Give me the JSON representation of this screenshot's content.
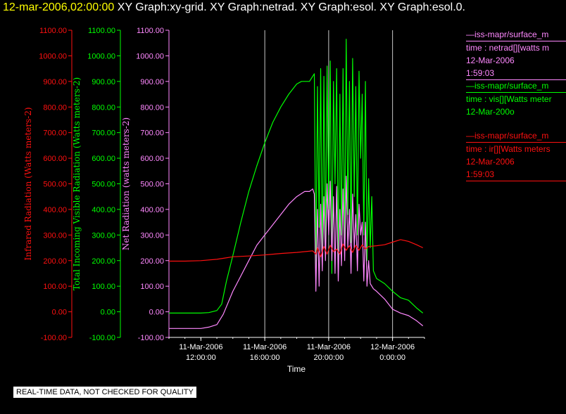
{
  "header": {
    "timestamp": "12-mar-2006,02:00:00",
    "titles": "XY Graph:xy-grid.  XY Graph:netrad.  XY Graph:esol.  XY Graph:esol.0."
  },
  "colors": {
    "background": "#000000",
    "ir": "#ff1010",
    "vis": "#00ff00",
    "net": "#ff88ff",
    "grid": "#c8c8c8",
    "axis": "#ffffff"
  },
  "legends": {
    "net": {
      "line1": "—iss-mapr/surface_m",
      "line2": "time : netrad[][watts m",
      "line3": "12-Mar-2006",
      "line4": "1:59:03"
    },
    "vis": {
      "line1": "—iss-mapr/surface_m",
      "line2": "time : vis[][Watts meter",
      "line3": "12-Mar-200o"
    },
    "ir": {
      "line1": "—iss-mapr/surface_m",
      "line2": "time : ir[][Watts meters",
      "line3": "12-Mar-2006",
      "line4": "1:59:03"
    }
  },
  "disclaimer": "REAL-TIME DATA, NOT CHECKED FOR QUALITY",
  "chart_data": {
    "type": "line",
    "xlabel": "Time",
    "x_ticks": [
      {
        "date": "11-Mar-2006",
        "time": "12:00:00",
        "hour": 12
      },
      {
        "date": "11-Mar-2006",
        "time": "16:00:00",
        "hour": 16
      },
      {
        "date": "11-Mar-2006",
        "time": "20:00:00",
        "hour": 20
      },
      {
        "date": "12-Mar-2006",
        "time": "0:00:00",
        "hour": 24
      }
    ],
    "x_range_hours": [
      10.0,
      26.0
    ],
    "ylim": [
      -100,
      1100
    ],
    "y_tick_labels": [
      "-100.00",
      "0.00",
      "100.00",
      "200.00",
      "300.00",
      "400.00",
      "500.00",
      "600.00",
      "700.00",
      "800.00",
      "900.00",
      "1000.00",
      "1100.00"
    ],
    "axes": [
      {
        "id": "ir",
        "label": "Infrared Radiation (Watts meters-2)",
        "color": "#ff1010"
      },
      {
        "id": "vis",
        "label": "Total Incoming Visible Radiation (Watts meters-2)",
        "color": "#00ff00"
      },
      {
        "id": "net",
        "label": "Net Radiation (watts meters-2)",
        "color": "#ff88ff"
      }
    ],
    "vertical_gridlines_hours": [
      16,
      20,
      24
    ],
    "series": [
      {
        "id": "vis",
        "color": "#00ff00",
        "points": [
          [
            10.0,
            -5
          ],
          [
            12.0,
            -5
          ],
          [
            12.5,
            -3
          ],
          [
            13.0,
            5
          ],
          [
            13.3,
            30
          ],
          [
            13.6,
            120
          ],
          [
            14.0,
            220
          ],
          [
            14.5,
            350
          ],
          [
            15.0,
            470
          ],
          [
            15.5,
            570
          ],
          [
            16.0,
            660
          ],
          [
            16.5,
            740
          ],
          [
            17.0,
            800
          ],
          [
            17.5,
            850
          ],
          [
            18.0,
            890
          ],
          [
            18.3,
            900
          ],
          [
            18.8,
            900
          ],
          [
            19.0,
            920
          ],
          [
            19.1,
            930
          ],
          [
            19.2,
            150
          ],
          [
            19.3,
            880
          ],
          [
            19.4,
            330
          ],
          [
            19.5,
            950
          ],
          [
            19.6,
            180
          ],
          [
            19.7,
            920
          ],
          [
            19.8,
            250
          ],
          [
            19.9,
            960
          ],
          [
            20.0,
            400
          ],
          [
            20.1,
            980
          ],
          [
            20.2,
            150
          ],
          [
            20.3,
            900
          ],
          [
            20.4,
            500
          ],
          [
            20.5,
            950
          ],
          [
            20.6,
            180
          ],
          [
            20.7,
            850
          ],
          [
            20.8,
            300
          ],
          [
            20.9,
            950
          ],
          [
            21.0,
            250
          ],
          [
            21.1,
            1065
          ],
          [
            21.2,
            380
          ],
          [
            21.3,
            900
          ],
          [
            21.4,
            270
          ],
          [
            21.5,
            990
          ],
          [
            21.6,
            450
          ],
          [
            21.7,
            880
          ],
          [
            21.8,
            300
          ],
          [
            21.9,
            940
          ],
          [
            22.0,
            600
          ],
          [
            22.1,
            850
          ],
          [
            22.2,
            300
          ],
          [
            22.3,
            900
          ],
          [
            22.4,
            200
          ],
          [
            22.5,
            520
          ],
          [
            22.6,
            250
          ],
          [
            22.7,
            450
          ],
          [
            22.8,
            160
          ],
          [
            23.0,
            130
          ],
          [
            23.5,
            110
          ],
          [
            24.0,
            80
          ],
          [
            24.5,
            55
          ],
          [
            25.0,
            45
          ],
          [
            25.5,
            15
          ],
          [
            25.9,
            -5
          ]
        ]
      },
      {
        "id": "net",
        "color": "#ff88ff",
        "points": [
          [
            10.0,
            -65
          ],
          [
            11.0,
            -65
          ],
          [
            12.0,
            -65
          ],
          [
            12.5,
            -60
          ],
          [
            13.0,
            -50
          ],
          [
            13.4,
            -10
          ],
          [
            14.0,
            80
          ],
          [
            14.5,
            140
          ],
          [
            15.0,
            200
          ],
          [
            15.5,
            260
          ],
          [
            16.0,
            300
          ],
          [
            16.5,
            340
          ],
          [
            17.0,
            380
          ],
          [
            17.5,
            420
          ],
          [
            18.0,
            450
          ],
          [
            18.5,
            470
          ],
          [
            18.8,
            470
          ],
          [
            19.0,
            480
          ],
          [
            19.1,
            460
          ],
          [
            19.2,
            80
          ],
          [
            19.3,
            400
          ],
          [
            19.4,
            100
          ],
          [
            19.5,
            420
          ],
          [
            19.6,
            160
          ],
          [
            19.7,
            450
          ],
          [
            19.8,
            200
          ],
          [
            19.9,
            500
          ],
          [
            20.0,
            300
          ],
          [
            20.1,
            510
          ],
          [
            20.2,
            200
          ],
          [
            20.3,
            450
          ],
          [
            20.4,
            150
          ],
          [
            20.5,
            490
          ],
          [
            20.6,
            120
          ],
          [
            20.7,
            400
          ],
          [
            20.8,
            180
          ],
          [
            20.9,
            480
          ],
          [
            21.0,
            200
          ],
          [
            21.1,
            530
          ],
          [
            21.2,
            250
          ],
          [
            21.3,
            400
          ],
          [
            21.4,
            150
          ],
          [
            21.5,
            460
          ],
          [
            21.6,
            250
          ],
          [
            21.7,
            380
          ],
          [
            21.8,
            160
          ],
          [
            21.9,
            420
          ],
          [
            22.0,
            300
          ],
          [
            22.1,
            350
          ],
          [
            22.2,
            120
          ],
          [
            22.3,
            350
          ],
          [
            22.4,
            100
          ],
          [
            22.5,
            200
          ],
          [
            22.6,
            110
          ],
          [
            22.8,
            90
          ],
          [
            23.0,
            80
          ],
          [
            23.5,
            50
          ],
          [
            24.0,
            10
          ],
          [
            24.5,
            -5
          ],
          [
            25.0,
            -15
          ],
          [
            25.5,
            -35
          ],
          [
            25.9,
            -55
          ]
        ]
      },
      {
        "id": "ir",
        "color": "#ff1010",
        "points": [
          [
            10.0,
            198
          ],
          [
            11.0,
            198
          ],
          [
            12.0,
            200
          ],
          [
            13.0,
            205
          ],
          [
            13.5,
            210
          ],
          [
            14.0,
            215
          ],
          [
            15.0,
            218
          ],
          [
            16.0,
            222
          ],
          [
            17.0,
            228
          ],
          [
            18.0,
            232
          ],
          [
            18.5,
            235
          ],
          [
            19.0,
            238
          ],
          [
            19.2,
            225
          ],
          [
            19.3,
            250
          ],
          [
            19.5,
            215
          ],
          [
            19.7,
            255
          ],
          [
            19.9,
            225
          ],
          [
            20.1,
            260
          ],
          [
            20.3,
            235
          ],
          [
            20.5,
            245
          ],
          [
            20.7,
            225
          ],
          [
            20.9,
            265
          ],
          [
            21.1,
            240
          ],
          [
            21.3,
            258
          ],
          [
            21.5,
            232
          ],
          [
            21.7,
            260
          ],
          [
            21.9,
            240
          ],
          [
            22.1,
            262
          ],
          [
            22.3,
            245
          ],
          [
            22.5,
            255
          ],
          [
            23.0,
            258
          ],
          [
            23.5,
            262
          ],
          [
            24.0,
            272
          ],
          [
            24.5,
            282
          ],
          [
            25.0,
            275
          ],
          [
            25.5,
            262
          ],
          [
            25.9,
            250
          ]
        ]
      }
    ]
  }
}
